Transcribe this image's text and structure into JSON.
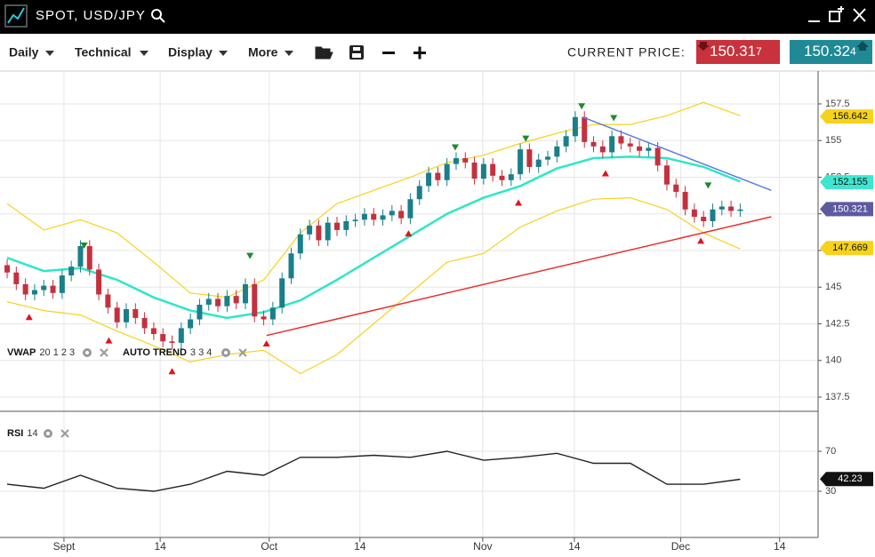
{
  "header": {
    "title": "SPOT, USD/JPY"
  },
  "toolbar": {
    "menus": [
      "Daily",
      "Technical",
      "Display",
      "More"
    ],
    "price_label": "CURRENT PRICE:",
    "bid": {
      "main": "150.31",
      "pip": "7"
    },
    "ask": {
      "main": "150.32",
      "pip": "4"
    }
  },
  "indicators": {
    "vwap": {
      "name": "VWAP",
      "params": "20 1 2 3"
    },
    "auto_trend": {
      "name": "AUTO TREND",
      "params": "3 3 4"
    },
    "rsi": {
      "name": "RSI",
      "params": "14"
    }
  },
  "chart_data": [
    {
      "type": "candlestick",
      "up_color": "#1a7f8b",
      "down_color": "#c4313e",
      "open": [
        146.5,
        146,
        145.2,
        144.5,
        144.8,
        145.1,
        144.6,
        145.8,
        146.4,
        147.8,
        146.2,
        144.5,
        143.6,
        142.6,
        143.5,
        142.9,
        142.2,
        141.8,
        141.3,
        141.2,
        142.2,
        142.8,
        143.8,
        144.2,
        143.7,
        144.4,
        143.9,
        145.2,
        143.0,
        142.8,
        143.6,
        145.6,
        147.3,
        148.6,
        149.2,
        148.2,
        149.4,
        148.9,
        149.5,
        149.6,
        150.0,
        149.6,
        149.9,
        150.2,
        149.7,
        151.0,
        151.9,
        152.8,
        152.3,
        153.4,
        153.8,
        153.5,
        152.4,
        153.4,
        152.6,
        152.3,
        152.7,
        154.4,
        153.2,
        153.7,
        153.9,
        154.6,
        155.3,
        156.6,
        154.9,
        154.6,
        154.2,
        155.3,
        154.8,
        154.6,
        154.3,
        154.5,
        153.3,
        152.0,
        151.5,
        150.3,
        149.8,
        149.5,
        150.3,
        150.5,
        150.2
      ],
      "high": [
        146.9,
        146.4,
        145.6,
        145.2,
        145.5,
        145.5,
        146.2,
        146.8,
        148.2,
        148.2,
        146.6,
        144.9,
        144,
        143.9,
        143.9,
        143.3,
        142.6,
        142.2,
        141.7,
        142.6,
        143.2,
        144.2,
        144.6,
        144.6,
        144.8,
        144.8,
        145.6,
        145.6,
        143.4,
        144,
        146,
        147.7,
        149,
        149.6,
        149.6,
        149.8,
        149.8,
        149.9,
        150,
        150.4,
        150.4,
        150.3,
        150.6,
        150.6,
        151.4,
        152.3,
        153.2,
        153.2,
        153.8,
        154.2,
        154.2,
        153.9,
        153.8,
        153.8,
        153,
        153.1,
        154.8,
        154.8,
        154.1,
        154.3,
        155,
        155.7,
        157,
        157,
        155.3,
        155,
        155.7,
        155.7,
        155.2,
        155,
        154.9,
        154.9,
        153.7,
        152.4,
        151.9,
        150.7,
        150.2,
        150.7,
        150.9,
        150.9,
        150.7
      ],
      "low": [
        145.6,
        144.8,
        144.1,
        144.1,
        144.4,
        144.2,
        144.2,
        145.4,
        146,
        145.8,
        144.1,
        143.2,
        142.2,
        142.2,
        142.5,
        141.8,
        141.4,
        140.9,
        140.8,
        140.8,
        141.8,
        142.4,
        143.4,
        143.3,
        143.3,
        143.5,
        143.5,
        142.6,
        142.4,
        142.4,
        143.2,
        145.2,
        146.9,
        148.2,
        147.8,
        147.8,
        148.5,
        148.5,
        149.1,
        149.2,
        149.2,
        149.2,
        149.5,
        149.3,
        149.3,
        150.6,
        151.5,
        151.9,
        151.9,
        153,
        153.1,
        152,
        152,
        152.2,
        151.9,
        151.9,
        152.3,
        152.8,
        152.8,
        153.3,
        153.5,
        154.2,
        154.9,
        154.5,
        154.2,
        153.8,
        153.8,
        154.4,
        154.2,
        153.9,
        153.9,
        152.9,
        151.6,
        151.1,
        149.9,
        149.4,
        149.1,
        149.1,
        149.9,
        149.8,
        149.8
      ],
      "close": [
        146,
        145.2,
        144.5,
        144.8,
        145.1,
        144.6,
        145.8,
        146.4,
        147.8,
        146.2,
        144.5,
        143.6,
        142.6,
        143.5,
        142.9,
        142.2,
        141.8,
        141.3,
        141.2,
        142.2,
        142.8,
        143.8,
        144.2,
        143.7,
        144.4,
        143.9,
        145.2,
        143.0,
        142.8,
        143.6,
        145.6,
        147.3,
        148.6,
        149.2,
        148.2,
        149.4,
        148.9,
        149.5,
        149.6,
        150.0,
        149.6,
        149.9,
        150.2,
        149.7,
        151.0,
        151.9,
        152.8,
        152.3,
        153.4,
        153.8,
        153.5,
        152.4,
        153.4,
        152.6,
        152.3,
        152.7,
        154.4,
        153.2,
        153.7,
        153.9,
        154.6,
        155.3,
        156.6,
        154.9,
        154.6,
        154.2,
        155.3,
        154.8,
        154.6,
        154.3,
        154.5,
        153.3,
        152.0,
        151.5,
        150.3,
        149.8,
        149.5,
        150.3,
        150.5,
        150.2,
        150.3
      ],
      "series": [
        {
          "color": "#f7d21c",
          "x": [
            0,
            4,
            8,
            12,
            16,
            20,
            24,
            28,
            32,
            36,
            40,
            44,
            48,
            52,
            56,
            60,
            64,
            68,
            72,
            76,
            80
          ],
          "values": [
            150.7,
            148.9,
            149.6,
            148.7,
            146.7,
            144.6,
            144.3,
            145.5,
            148.7,
            150.7,
            151.6,
            152.5,
            153.5,
            154.0,
            154.8,
            155.5,
            156.1,
            156.1,
            156.7,
            157.6,
            156.7
          ]
        },
        {
          "color": "#2ee6c9",
          "x": [
            0,
            4,
            8,
            12,
            16,
            20,
            24,
            28,
            32,
            36,
            40,
            44,
            48,
            52,
            56,
            60,
            64,
            68,
            72,
            76,
            80
          ],
          "values": [
            147.0,
            146.1,
            146.3,
            145.5,
            144.3,
            143.4,
            142.9,
            143.3,
            144.1,
            145.5,
            147.0,
            148.5,
            150.0,
            151.1,
            151.9,
            153.1,
            153.8,
            153.9,
            153.8,
            153.2,
            152.2
          ]
        },
        {
          "color": "#f7d21c",
          "x": [
            0,
            4,
            8,
            12,
            16,
            20,
            24,
            28,
            32,
            36,
            40,
            44,
            48,
            52,
            56,
            60,
            64,
            68,
            72,
            76,
            80
          ],
          "values": [
            144.0,
            143.4,
            143.1,
            142.0,
            141.0,
            139.9,
            140.4,
            140.7,
            139.1,
            140.4,
            142.5,
            144.6,
            146.7,
            147.3,
            149.1,
            150.2,
            151.0,
            151.1,
            150.3,
            148.7,
            147.6
          ]
        }
      ],
      "trendlines": [
        {
          "color": "#5b7de0",
          "x": [
            62.8,
            83.4
          ],
          "values": [
            156.6,
            151.6
          ]
        },
        {
          "color": "#e8302e",
          "x": [
            28.3,
            83.4
          ],
          "values": [
            141.7,
            149.8
          ]
        }
      ],
      "signals": {
        "down": {
          "color": "#1f8a2b",
          "x": [
            8.4,
            26.5,
            48.9,
            56.6,
            62.7,
            66.2,
            76.5
          ],
          "values": [
            147.8,
            147.1,
            154.5,
            155.1,
            157.3,
            156.5,
            151.9
          ]
        },
        "up": {
          "color": "#e0141e",
          "x": [
            2.4,
            11.1,
            18,
            28.3,
            43.8,
            55.8,
            65.3,
            75.7
          ],
          "values": [
            143.0,
            141.4,
            139.3,
            141.2,
            148.7,
            150.8,
            152.8,
            148.2
          ]
        }
      },
      "price_tags": [
        {
          "value": 156.642,
          "color": "#f7d21c",
          "text_color": "#111"
        },
        {
          "value": 152.155,
          "color": "#3ee6cf",
          "text_color": "#111"
        },
        {
          "value": 150.321,
          "color": "#5e5aa0",
          "text_color": "#fff"
        },
        {
          "value": 147.669,
          "color": "#f7d21c",
          "text_color": "#111"
        }
      ],
      "xlim": [
        -0.78,
        88.5
      ],
      "ylim": [
        136.53,
        159.74
      ],
      "yticks": [
        137.5,
        140,
        142.5,
        145,
        147.5,
        150,
        152.5,
        155,
        157.5
      ],
      "grid": true
    },
    {
      "type": "line",
      "series": [
        {
          "color": "#222222",
          "x": [
            0,
            4,
            8,
            12,
            16,
            20,
            24,
            28,
            32,
            36,
            40,
            44,
            48,
            52,
            56,
            60,
            64,
            68,
            72,
            76,
            80
          ],
          "values": [
            37,
            33,
            46,
            33,
            30,
            37,
            50,
            46,
            64,
            64,
            66,
            64,
            70,
            61,
            64,
            68,
            58,
            58,
            37,
            37,
            42
          ]
        }
      ],
      "price_tags": [
        {
          "value": 42.23,
          "color": "#111111",
          "text_color": "#fff"
        }
      ],
      "xlim": [
        -0.78,
        88.5
      ],
      "ylim": [
        -16.2,
        110
      ],
      "yticks": [
        30,
        70
      ],
      "grid": true,
      "xticks": [
        {
          "value": 6.2,
          "label": "Sept"
        },
        {
          "value": 16.7,
          "label": "14"
        },
        {
          "value": 28.6,
          "label": "Oct"
        },
        {
          "value": 38.5,
          "label": "14"
        },
        {
          "value": 51.9,
          "label": "Nov"
        },
        {
          "value": 61.9,
          "label": "14"
        },
        {
          "value": 73.5,
          "label": "Dec"
        },
        {
          "value": 84.3,
          "label": "14"
        }
      ]
    }
  ]
}
